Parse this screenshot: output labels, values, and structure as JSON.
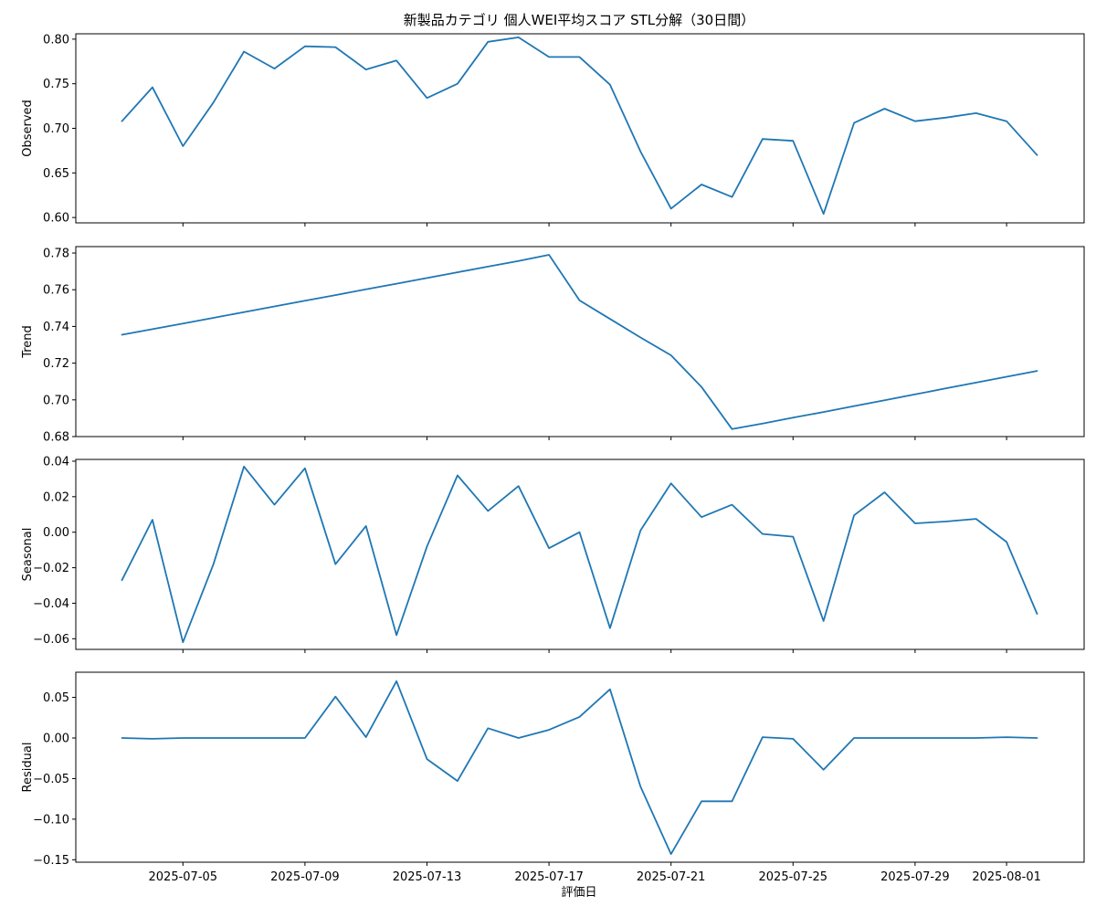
{
  "chart_data": {
    "type": "line",
    "title": "新製品カテゴリ 個人WEI平均スコア STL分解（30日間）",
    "xlabel": "評価日",
    "x": [
      "2025-07-03",
      "2025-07-04",
      "2025-07-05",
      "2025-07-06",
      "2025-07-07",
      "2025-07-08",
      "2025-07-09",
      "2025-07-10",
      "2025-07-11",
      "2025-07-12",
      "2025-07-13",
      "2025-07-14",
      "2025-07-15",
      "2025-07-16",
      "2025-07-17",
      "2025-07-18",
      "2025-07-19",
      "2025-07-20",
      "2025-07-21",
      "2025-07-22",
      "2025-07-23",
      "2025-07-24",
      "2025-07-25",
      "2025-07-26",
      "2025-07-27",
      "2025-07-28",
      "2025-07-29",
      "2025-07-30",
      "2025-07-31",
      "2025-08-01",
      "2025-08-02"
    ],
    "x_ticks": [
      {
        "date": "2025-07-05",
        "label": "2025-07-05"
      },
      {
        "date": "2025-07-09",
        "label": "2025-07-09"
      },
      {
        "date": "2025-07-13",
        "label": "2025-07-13"
      },
      {
        "date": "2025-07-17",
        "label": "2025-07-17"
      },
      {
        "date": "2025-07-21",
        "label": "2025-07-21"
      },
      {
        "date": "2025-07-25",
        "label": "2025-07-25"
      },
      {
        "date": "2025-07-29",
        "label": "2025-07-29"
      },
      {
        "date": "2025-08-01",
        "label": "2025-08-01"
      }
    ],
    "line_color": "#1f77b4",
    "panels": [
      {
        "ylabel": "Observed",
        "ylim": [
          0.594,
          0.806
        ],
        "yticks": [
          0.6,
          0.65,
          0.7,
          0.75,
          0.8
        ],
        "ytick_labels": [
          "0.60",
          "0.65",
          "0.70",
          "0.75",
          "0.80"
        ],
        "values": [
          0.708,
          0.746,
          0.68,
          0.729,
          0.786,
          0.767,
          0.792,
          0.791,
          0.766,
          0.776,
          0.734,
          0.75,
          0.797,
          0.802,
          0.78,
          0.78,
          0.749,
          0.674,
          0.61,
          0.637,
          0.623,
          0.688,
          0.686,
          0.604,
          0.706,
          0.722,
          0.708,
          0.712,
          0.717,
          0.708,
          0.67
        ]
      },
      {
        "ylabel": "Trend",
        "ylim": [
          0.68,
          0.7835
        ],
        "yticks": [
          0.68,
          0.7,
          0.72,
          0.74,
          0.76,
          0.78
        ],
        "ytick_labels": [
          "0.68",
          "0.70",
          "0.72",
          "0.74",
          "0.76",
          "0.78"
        ],
        "values": [
          0.7355,
          0.7385,
          0.7416,
          0.7447,
          0.7478,
          0.7509,
          0.754,
          0.7571,
          0.7602,
          0.7633,
          0.7664,
          0.7695,
          0.7726,
          0.7757,
          0.779,
          0.7542,
          0.7441,
          0.734,
          0.7243,
          0.707,
          0.6841,
          0.6871,
          0.6903,
          0.6934,
          0.6966,
          0.6998,
          0.703,
          0.7062,
          0.7094,
          0.7126,
          0.7158
        ]
      },
      {
        "ylabel": "Seasonal",
        "ylim": [
          -0.066,
          0.041
        ],
        "yticks": [
          -0.06,
          -0.04,
          -0.02,
          0.0,
          0.02,
          0.04
        ],
        "ytick_labels": [
          "−0.06",
          "−0.04",
          "−0.02",
          "0.00",
          "0.02",
          "0.04"
        ],
        "values": [
          -0.027,
          0.007,
          -0.062,
          -0.018,
          0.037,
          0.0155,
          0.036,
          -0.018,
          0.0035,
          -0.058,
          -0.008,
          0.032,
          0.012,
          0.026,
          -0.009,
          0.0,
          -0.054,
          0.001,
          0.0275,
          0.0085,
          0.0155,
          -0.001,
          -0.0025,
          -0.05,
          0.0095,
          0.0225,
          0.005,
          0.006,
          0.0075,
          -0.0055,
          -0.046
        ]
      },
      {
        "ylabel": "Residual",
        "ylim": [
          -0.153,
          0.081
        ],
        "yticks": [
          -0.15,
          -0.1,
          -0.05,
          0.0,
          0.05
        ],
        "ytick_labels": [
          "−0.15",
          "−0.10",
          "−0.05",
          "0.00",
          "0.05"
        ],
        "values": [
          0.0,
          -0.001,
          0.0,
          0.0,
          0.0,
          0.0,
          0.0,
          0.051,
          0.001,
          0.07,
          -0.026,
          -0.053,
          0.012,
          0.0,
          0.01,
          0.026,
          0.06,
          -0.06,
          -0.143,
          -0.078,
          -0.078,
          0.001,
          -0.001,
          -0.039,
          0.0,
          0.0,
          0.0,
          0.0,
          0.0,
          0.001,
          0.0
        ]
      }
    ],
    "grid": false,
    "legend": "none"
  }
}
